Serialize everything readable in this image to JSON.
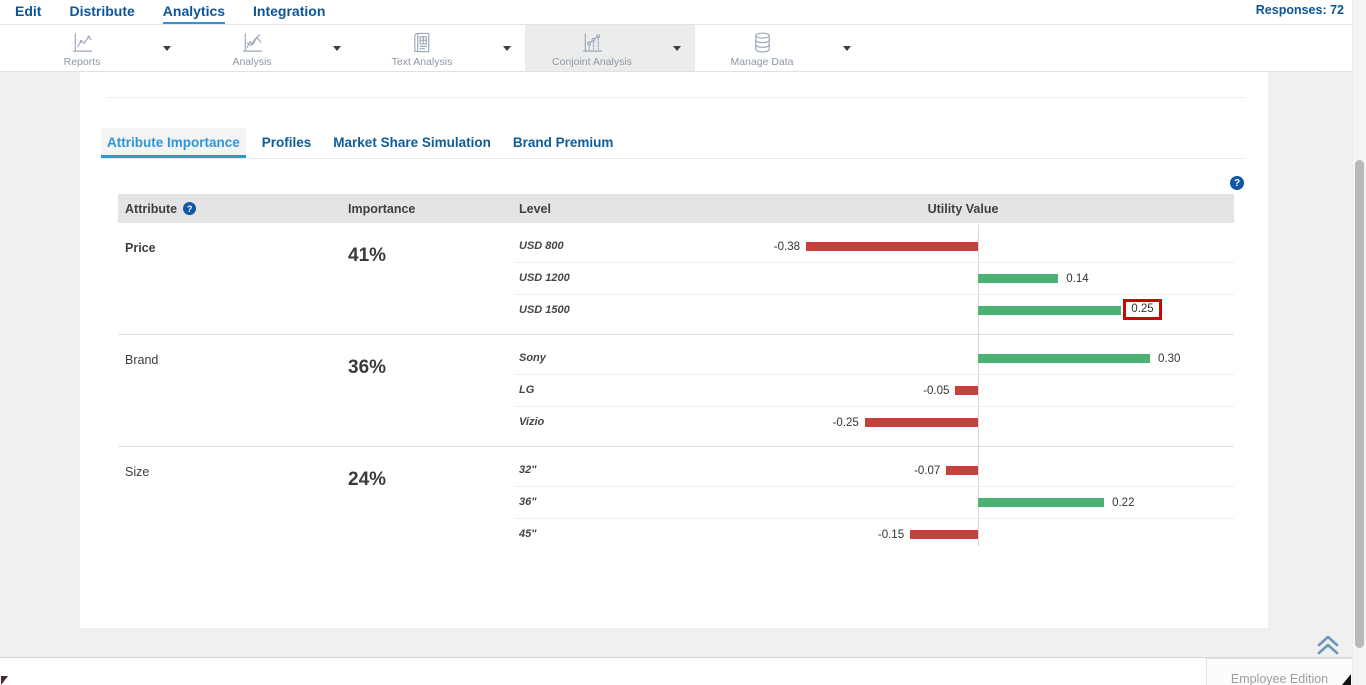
{
  "nav": {
    "items": [
      {
        "label": "Edit",
        "active": false
      },
      {
        "label": "Distribute",
        "active": false
      },
      {
        "label": "Analytics",
        "active": true
      },
      {
        "label": "Integration",
        "active": false
      }
    ],
    "responses": "Responses: 72"
  },
  "toolbar": {
    "items": [
      {
        "label": "Reports",
        "icon": "reports-chart-icon",
        "selected": false
      },
      {
        "label": "Analysis",
        "icon": "analysis-chart-icon",
        "selected": false
      },
      {
        "label": "Text Analysis",
        "icon": "text-analysis-icon",
        "selected": false
      },
      {
        "label": "Conjoint Analysis",
        "icon": "conjoint-analysis-icon",
        "selected": true
      },
      {
        "label": "Manage Data",
        "icon": "database-icon",
        "selected": false
      }
    ]
  },
  "tabs": [
    {
      "label": "Attribute Importance",
      "active": true
    },
    {
      "label": "Profiles",
      "active": false
    },
    {
      "label": "Market Share Simulation",
      "active": false
    },
    {
      "label": "Brand Premium",
      "active": false
    }
  ],
  "table": {
    "headers": {
      "attribute": "Attribute",
      "importance": "Importance",
      "level": "Level",
      "utility": "Utility Value"
    },
    "sections": [
      {
        "attribute": "Price",
        "importance": "41%",
        "levels": [
          {
            "label": "USD 800",
            "value": -0.38,
            "display": "-0.38",
            "highlighted": false
          },
          {
            "label": "USD 1200",
            "value": 0.14,
            "display": "0.14",
            "highlighted": false
          },
          {
            "label": "USD 1500",
            "value": 0.25,
            "display": "0.25",
            "highlighted": true
          }
        ]
      },
      {
        "attribute": "Brand",
        "importance": "36%",
        "levels": [
          {
            "label": "Sony",
            "value": 0.3,
            "display": "0.30",
            "highlighted": false
          },
          {
            "label": "LG",
            "value": -0.05,
            "display": "-0.05",
            "highlighted": false
          },
          {
            "label": "Vizio",
            "value": -0.25,
            "display": "-0.25",
            "highlighted": false
          }
        ]
      },
      {
        "attribute": "Size",
        "importance": "24%",
        "levels": [
          {
            "label": "32\"",
            "value": -0.07,
            "display": "-0.07",
            "highlighted": false
          },
          {
            "label": "36\"",
            "value": 0.22,
            "display": "0.22",
            "highlighted": false
          },
          {
            "label": "45\"",
            "value": -0.15,
            "display": "-0.15",
            "highlighted": false
          }
        ]
      }
    ]
  },
  "chart_data": {
    "type": "bar",
    "title": "Utility Value",
    "categories": [
      "USD 800",
      "USD 1200",
      "USD 1500",
      "Sony",
      "LG",
      "Vizio",
      "32\"",
      "36\"",
      "45\""
    ],
    "values": [
      -0.38,
      0.14,
      0.25,
      0.3,
      -0.05,
      -0.25,
      -0.07,
      0.22,
      -0.15
    ],
    "orientation": "horizontal",
    "positive_color": "#4cb176",
    "negative_color": "#c8403e"
  },
  "footer": {
    "edition": "Employee Edition"
  },
  "icons": {
    "help": "question-mark-icon",
    "back_to_top": "chevrons-up-icon",
    "dropdown": "caret-down-icon"
  },
  "colors": {
    "positive_bar": "#4cb176",
    "negative_bar": "#c8403e",
    "highlight_box": "#cc0505",
    "active_tab": "#2e96d6",
    "link_blue": "#0e5596"
  }
}
